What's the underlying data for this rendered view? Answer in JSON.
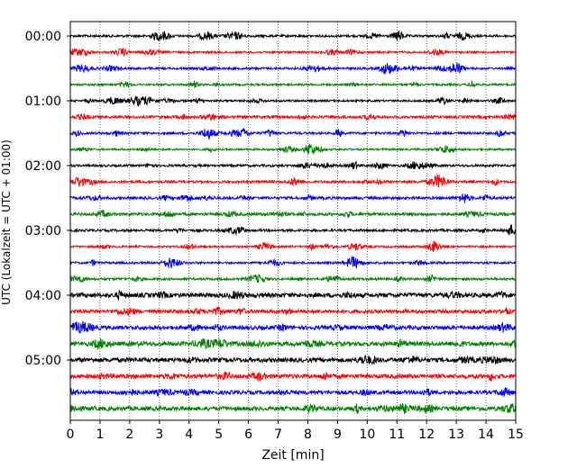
{
  "chart_data": {
    "type": "line",
    "title": "",
    "xlabel": "Zeit  [min]",
    "ylabel": "UTC (Lokalzeit = UTC + 01:00)",
    "xlim": [
      0,
      15
    ],
    "x_ticks": [
      "0",
      "1",
      "2",
      "3",
      "4",
      "5",
      "6",
      "7",
      "8",
      "9",
      "10",
      "11",
      "12",
      "13",
      "14",
      "15"
    ],
    "y_ticks": [
      "00:00",
      "01:00",
      "02:00",
      "03:00",
      "04:00",
      "05:00"
    ],
    "grid": "vertical dotted at each minute",
    "trace_interval_min": 15,
    "trace_colors": [
      "#000000",
      "#ff0000",
      "#0000ff",
      "#008000"
    ],
    "traces": [
      {
        "start": "00:00",
        "color": "#000000"
      },
      {
        "start": "00:15",
        "color": "#ff0000"
      },
      {
        "start": "00:30",
        "color": "#0000ff"
      },
      {
        "start": "00:45",
        "color": "#008000"
      },
      {
        "start": "01:00",
        "color": "#000000"
      },
      {
        "start": "01:15",
        "color": "#ff0000"
      },
      {
        "start": "01:30",
        "color": "#0000ff"
      },
      {
        "start": "01:45",
        "color": "#008000"
      },
      {
        "start": "02:00",
        "color": "#000000"
      },
      {
        "start": "02:15",
        "color": "#ff0000"
      },
      {
        "start": "02:30",
        "color": "#0000ff"
      },
      {
        "start": "02:45",
        "color": "#008000"
      },
      {
        "start": "03:00",
        "color": "#000000"
      },
      {
        "start": "03:15",
        "color": "#ff0000"
      },
      {
        "start": "03:30",
        "color": "#0000ff"
      },
      {
        "start": "03:45",
        "color": "#008000"
      },
      {
        "start": "04:00",
        "color": "#000000"
      },
      {
        "start": "04:15",
        "color": "#ff0000"
      },
      {
        "start": "04:30",
        "color": "#0000ff"
      },
      {
        "start": "04:45",
        "color": "#008000"
      },
      {
        "start": "05:00",
        "color": "#000000"
      },
      {
        "start": "05:15",
        "color": "#ff0000"
      },
      {
        "start": "05:30",
        "color": "#0000ff"
      },
      {
        "start": "05:45",
        "color": "#008000"
      }
    ]
  }
}
